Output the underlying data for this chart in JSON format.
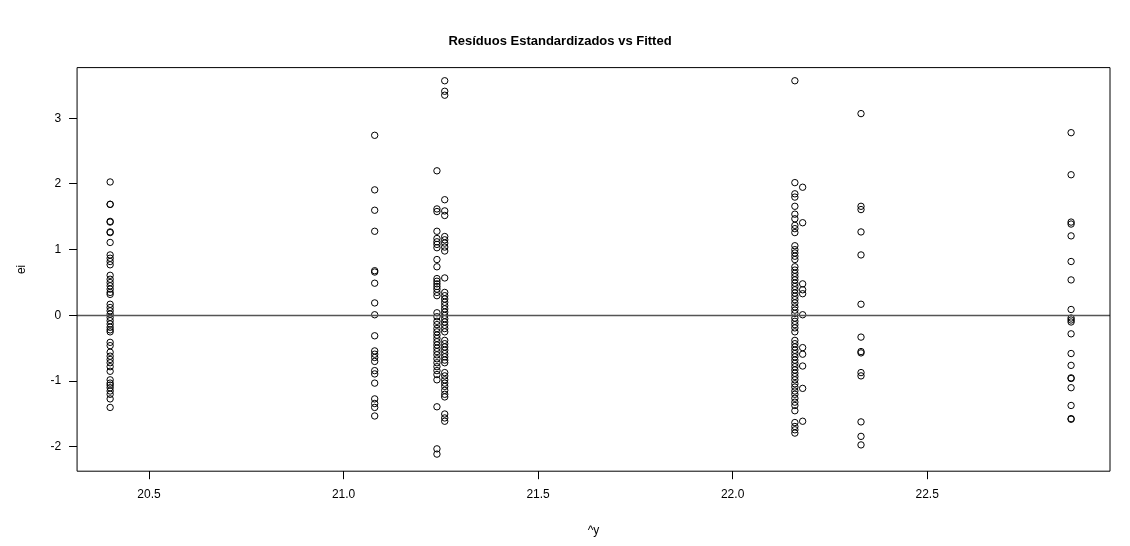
{
  "chart_data": {
    "type": "scatter",
    "title": "Resíduos Estandardizados vs Fitted",
    "xlabel": "^y",
    "ylabel": "ei",
    "xlim": [
      20.315,
      22.97
    ],
    "xticks": [
      20.5,
      {
        "value": 21.0,
        "label": "21.0"
      },
      21.5,
      {
        "value": 22.0,
        "label": "22.0"
      },
      22.5
    ],
    "ylim": [
      -2.37,
      3.77
    ],
    "yticks": [
      -2,
      -1,
      0,
      1,
      2,
      3
    ],
    "grid": false,
    "legend": false,
    "marker": "circle",
    "ref_lines": [
      {
        "axis": "y",
        "value": 0,
        "color": "#555555",
        "line_style": "solid"
      }
    ],
    "series": [
      {
        "color": "#000000",
        "x": [
          20.4,
          20.4,
          20.4,
          20.4,
          20.4,
          20.4,
          20.4,
          20.4,
          20.4,
          20.4,
          20.4,
          20.4,
          20.4,
          20.4,
          20.4,
          20.4,
          20.4,
          20.4,
          20.4,
          20.4,
          20.4,
          20.4,
          20.4,
          20.4,
          20.4,
          20.4,
          20.4,
          20.4,
          20.4,
          20.4,
          20.4,
          20.4,
          20.4,
          20.4,
          20.4,
          20.4,
          20.4,
          20.4,
          20.4,
          20.4,
          20.4,
          20.4,
          20.4,
          20.4,
          20.4
        ],
        "values": [
          2.03,
          1.69,
          1.69,
          1.43,
          1.42,
          1.27,
          1.26,
          1.11,
          0.92,
          0.87,
          0.82,
          0.77,
          0.61,
          0.55,
          0.5,
          0.45,
          0.4,
          0.35,
          0.32,
          0.17,
          0.12,
          0.07,
          0.02,
          -0.03,
          -0.08,
          -0.13,
          -0.18,
          -0.22,
          -0.25,
          -0.41,
          -0.46,
          -0.56,
          -0.62,
          -0.67,
          -0.72,
          -0.78,
          -0.85,
          -0.98,
          -1.03,
          -1.06,
          -1.1,
          -1.15,
          -1.2,
          -1.27,
          -1.4
        ]
      },
      {
        "color": "#000000",
        "x": [
          21.08,
          21.08,
          21.08,
          21.08,
          21.08,
          21.08,
          21.08,
          21.08,
          21.08,
          21.08,
          21.08,
          21.08,
          21.08,
          21.08,
          21.08,
          21.08,
          21.08,
          21.08,
          21.08,
          21.08,
          21.08
        ],
        "values": [
          2.74,
          1.91,
          1.6,
          1.28,
          0.68,
          0.66,
          0.49,
          0.19,
          0.01,
          -0.31,
          -0.54,
          -0.59,
          -0.64,
          -0.7,
          -0.84,
          -0.89,
          -1.03,
          -1.27,
          -1.34,
          -1.4,
          -1.53
        ]
      },
      {
        "color": "#000000",
        "x": [
          21.24,
          21.24,
          21.24,
          21.24,
          21.24,
          21.24,
          21.24,
          21.24,
          21.24,
          21.24,
          21.24,
          21.24,
          21.24,
          21.24,
          21.24,
          21.24,
          21.24,
          21.24,
          21.24,
          21.24,
          21.24,
          21.24,
          21.24,
          21.24,
          21.24,
          21.24,
          21.24,
          21.24,
          21.24,
          21.24,
          21.24,
          21.24,
          21.24,
          21.24,
          21.24,
          21.24,
          21.24,
          21.24,
          21.24
        ],
        "values": [
          2.2,
          1.62,
          1.58,
          1.28,
          1.17,
          1.12,
          1.08,
          1.03,
          0.85,
          0.74,
          0.56,
          0.52,
          0.48,
          0.44,
          0.4,
          0.35,
          0.3,
          0.04,
          -0.02,
          -0.09,
          -0.14,
          -0.2,
          -0.25,
          -0.3,
          -0.35,
          -0.4,
          -0.45,
          -0.5,
          -0.55,
          -0.6,
          -0.66,
          -0.72,
          -0.78,
          -0.84,
          -0.9,
          -0.98,
          -1.39,
          -2.03,
          -2.11
        ]
      },
      {
        "color": "#000000",
        "x": [
          21.26,
          21.26,
          21.26,
          21.26,
          21.26,
          21.26,
          21.26,
          21.26,
          21.26,
          21.26,
          21.26,
          21.26,
          21.26,
          21.26,
          21.26,
          21.26,
          21.26,
          21.26,
          21.26,
          21.26,
          21.26,
          21.26,
          21.26,
          21.26,
          21.26,
          21.26,
          21.26,
          21.26,
          21.26,
          21.26,
          21.26,
          21.26,
          21.26,
          21.26,
          21.26,
          21.26,
          21.26,
          21.26,
          21.26,
          21.26,
          21.26,
          21.26,
          21.26,
          21.26
        ],
        "values": [
          3.57,
          3.41,
          3.35,
          1.76,
          1.59,
          1.52,
          1.2,
          1.15,
          1.1,
          1.04,
          0.98,
          0.57,
          0.35,
          0.3,
          0.25,
          0.2,
          0.15,
          0.1,
          0.05,
          0,
          -0.05,
          -0.1,
          -0.15,
          -0.2,
          -0.25,
          -0.38,
          -0.43,
          -0.48,
          -0.53,
          -0.58,
          -0.63,
          -0.68,
          -0.72,
          -0.87,
          -0.92,
          -0.98,
          -1.03,
          -1.08,
          -1.14,
          -1.2,
          -1.24,
          -1.5,
          -1.56,
          -1.61
        ]
      },
      {
        "color": "#000000",
        "x": [
          22.16,
          22.16,
          22.16,
          22.16,
          22.16,
          22.16,
          22.16,
          22.16,
          22.16,
          22.16,
          22.16,
          22.16,
          22.16,
          22.16,
          22.16,
          22.16,
          22.16,
          22.16,
          22.16,
          22.16,
          22.16,
          22.16,
          22.16,
          22.16,
          22.16,
          22.16,
          22.16,
          22.16,
          22.16,
          22.16,
          22.16,
          22.16,
          22.16,
          22.16,
          22.16,
          22.16,
          22.16,
          22.16,
          22.16,
          22.16,
          22.16,
          22.16,
          22.16,
          22.16,
          22.16,
          22.16,
          22.16,
          22.16,
          22.16,
          22.16,
          22.16,
          22.16,
          22.16,
          22.16,
          22.16,
          22.16,
          22.16,
          22.16,
          22.16,
          22.16
        ],
        "values": [
          3.57,
          2.02,
          1.85,
          1.8,
          1.66,
          1.54,
          1.47,
          1.37,
          1.32,
          1.26,
          1.06,
          1,
          0.95,
          0.9,
          0.85,
          0.74,
          0.69,
          0.64,
          0.59,
          0.54,
          0.49,
          0.44,
          0.39,
          0.34,
          0.29,
          0.24,
          0.19,
          0.13,
          0.08,
          0.03,
          -0.04,
          -0.09,
          -0.14,
          -0.19,
          -0.25,
          -0.38,
          -0.43,
          -0.48,
          -0.53,
          -0.58,
          -0.63,
          -0.68,
          -0.73,
          -0.78,
          -0.83,
          -0.88,
          -0.93,
          -0.98,
          -1.04,
          -1.09,
          -1.15,
          -1.2,
          -1.26,
          -1.32,
          -1.37,
          -1.45,
          -1.63,
          -1.69,
          -1.74,
          -1.79
        ]
      },
      {
        "color": "#000000",
        "x": [
          22.18,
          22.18,
          22.18,
          22.18,
          22.18,
          22.18,
          22.18,
          22.18,
          22.18,
          22.18,
          22.18
        ],
        "values": [
          1.95,
          1.41,
          0.48,
          0.39,
          0.33,
          0.01,
          -0.49,
          -0.59,
          -0.77,
          -1.11,
          -1.61
        ]
      },
      {
        "color": "#000000",
        "x": [
          22.33,
          22.33,
          22.33,
          22.33,
          22.33,
          22.33,
          22.33,
          22.33,
          22.33,
          22.33,
          22.33,
          22.33,
          22.33,
          22.33
        ],
        "values": [
          3.07,
          1.66,
          1.61,
          1.27,
          0.92,
          0.17,
          -0.33,
          -0.55,
          -0.57,
          -0.87,
          -0.92,
          -1.62,
          -1.84,
          -1.97
        ]
      },
      {
        "color": "#000000",
        "x": [
          22.87,
          22.87,
          22.87,
          22.87,
          22.87,
          22.87,
          22.87,
          22.87,
          22.87,
          22.87,
          22.87,
          22.87,
          22.87,
          22.87,
          22.87,
          22.87,
          22.87,
          22.87,
          22.87,
          22.87
        ],
        "values": [
          2.78,
          2.14,
          1.42,
          1.39,
          1.21,
          0.82,
          0.54,
          0.09,
          -0.04,
          -0.07,
          -0.1,
          -0.28,
          -0.58,
          -0.76,
          -0.95,
          -0.96,
          -1.1,
          -1.37,
          -1.57,
          -1.58
        ]
      }
    ]
  }
}
